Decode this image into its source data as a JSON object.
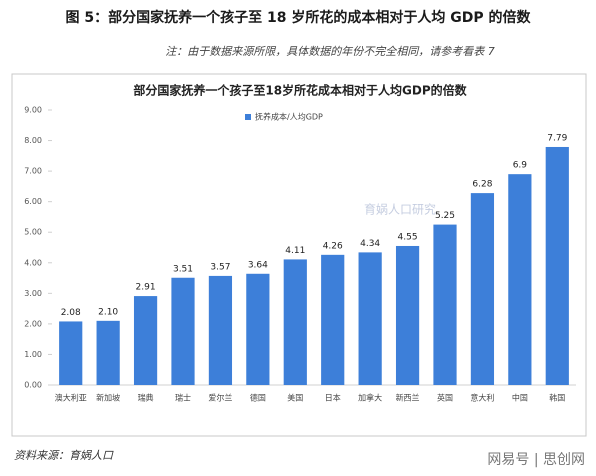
{
  "header": "图 5：部分国家抚养一个孩子至 18 岁所花的成本相对于人均 GDP 的倍数",
  "note": "注：由于数据来源所限，具体数据的年份不完全相同，请参考看表 7",
  "source": "资料来源：育娲人口",
  "watermark": "育娲人口研究",
  "footer_mark": "网易号 | 思创网",
  "chart_data": {
    "type": "bar",
    "title": "部分国家抚养一个孩子至18岁所花成本相对于人均GDP的倍数",
    "categories": [
      "澳大利亚",
      "新加坡",
      "瑞典",
      "瑞士",
      "爱尔兰",
      "德国",
      "美国",
      "日本",
      "加拿大",
      "新西兰",
      "英国",
      "意大利",
      "中国",
      "韩国"
    ],
    "series": [
      {
        "name": "抚养成本/人均GDP",
        "color": "#3d7fd9",
        "values": [
          2.08,
          2.1,
          2.91,
          3.51,
          3.57,
          3.64,
          4.11,
          4.26,
          4.34,
          4.55,
          5.25,
          6.28,
          6.9,
          7.79
        ],
        "value_labels": [
          "2.08",
          "2.10",
          "2.91",
          "3.51",
          "3.57",
          "3.64",
          "4.11",
          "4.26",
          "4.34",
          "4.55",
          "5.25",
          "6.28",
          "6.9",
          "7.79"
        ]
      }
    ],
    "ylim": [
      0,
      9
    ],
    "yticks": [
      {
        "value": 0,
        "label": "0.00"
      },
      {
        "value": 1,
        "label": "1.00"
      },
      {
        "value": 2,
        "label": "2.00"
      },
      {
        "value": 3,
        "label": "3.00"
      },
      {
        "value": 4,
        "label": "4.00"
      },
      {
        "value": 5,
        "label": "5.00"
      },
      {
        "value": 6,
        "label": "6.00"
      },
      {
        "value": 7,
        "label": "7.00"
      },
      {
        "value": 8,
        "label": "8.00"
      },
      {
        "value": 9,
        "label": "9.00"
      }
    ],
    "grid": false,
    "legend": "top"
  }
}
